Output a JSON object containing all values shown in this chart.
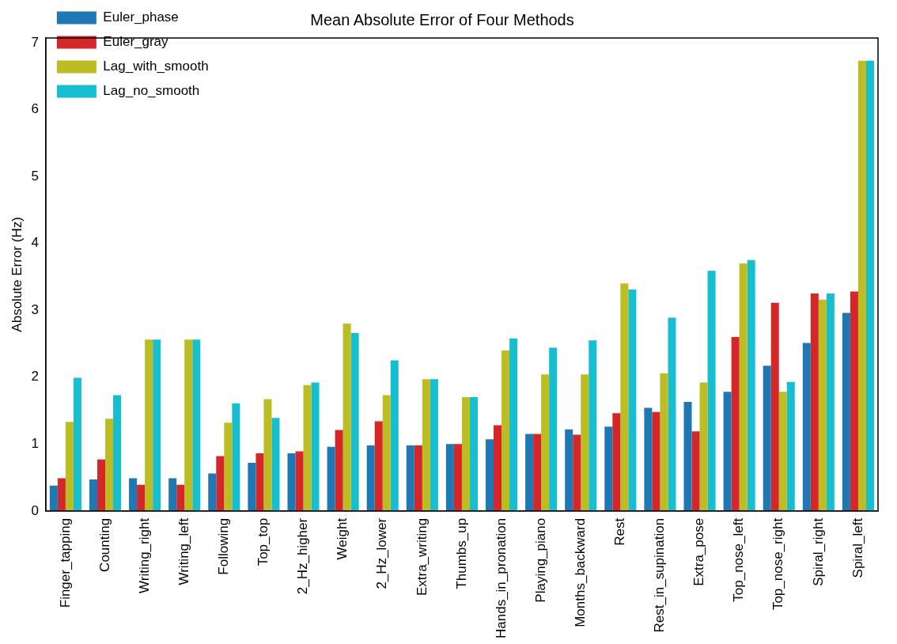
{
  "chart_data": {
    "type": "bar",
    "title": "Mean Absolute Error of Four Methods",
    "ylabel": "Absolute Error (Hz)",
    "categories": [
      "Finger_tapping",
      "Counting",
      "Writing_right",
      "Writing_left",
      "Following",
      "Top_top",
      "2_Hz_higher",
      "Weight",
      "2_Hz_lower",
      "Extra_writing",
      "Thumbs_up",
      "Hands_in_pronation",
      "Playing_piano",
      "Months_backward",
      "Rest",
      "Rest_in_supination",
      "Extra_pose",
      "Top_nose_left",
      "Top_nose_right",
      "Spiral_right",
      "Spiral_left"
    ],
    "series": [
      {
        "name": "Euler_phase",
        "color": "#1f77b4",
        "values": [
          0.38,
          0.47,
          0.49,
          0.49,
          0.56,
          0.72,
          0.86,
          0.96,
          0.98,
          0.98,
          1.0,
          1.07,
          1.15,
          1.22,
          1.26,
          1.54,
          1.63,
          1.78,
          2.17,
          2.51,
          2.96
        ]
      },
      {
        "name": "Euler_gray",
        "color": "#d62728",
        "values": [
          0.49,
          0.77,
          0.39,
          0.39,
          0.82,
          0.86,
          0.89,
          1.21,
          1.34,
          0.98,
          1.0,
          1.28,
          1.15,
          1.14,
          1.46,
          1.48,
          1.19,
          2.6,
          3.11,
          3.25,
          3.28
        ]
      },
      {
        "name": "Lag_with_smooth",
        "color": "#bcbd22",
        "values": [
          1.33,
          1.38,
          2.56,
          2.56,
          1.32,
          1.67,
          1.88,
          2.8,
          1.73,
          1.97,
          1.7,
          2.4,
          2.04,
          2.04,
          3.4,
          2.06,
          1.92,
          3.7,
          1.78,
          3.16,
          6.73
        ]
      },
      {
        "name": "Lag_no_smooth",
        "color": "#17becf",
        "values": [
          1.99,
          1.73,
          2.56,
          2.56,
          1.61,
          1.39,
          1.92,
          2.66,
          2.25,
          1.97,
          1.7,
          2.58,
          2.44,
          2.55,
          3.31,
          2.89,
          3.59,
          3.75,
          1.93,
          3.25,
          6.73
        ]
      }
    ],
    "ylim": [
      0,
      7.07
    ],
    "yticks": [
      0,
      1,
      2,
      3,
      4,
      5,
      6,
      7
    ],
    "grid": false,
    "legend": "top left"
  }
}
